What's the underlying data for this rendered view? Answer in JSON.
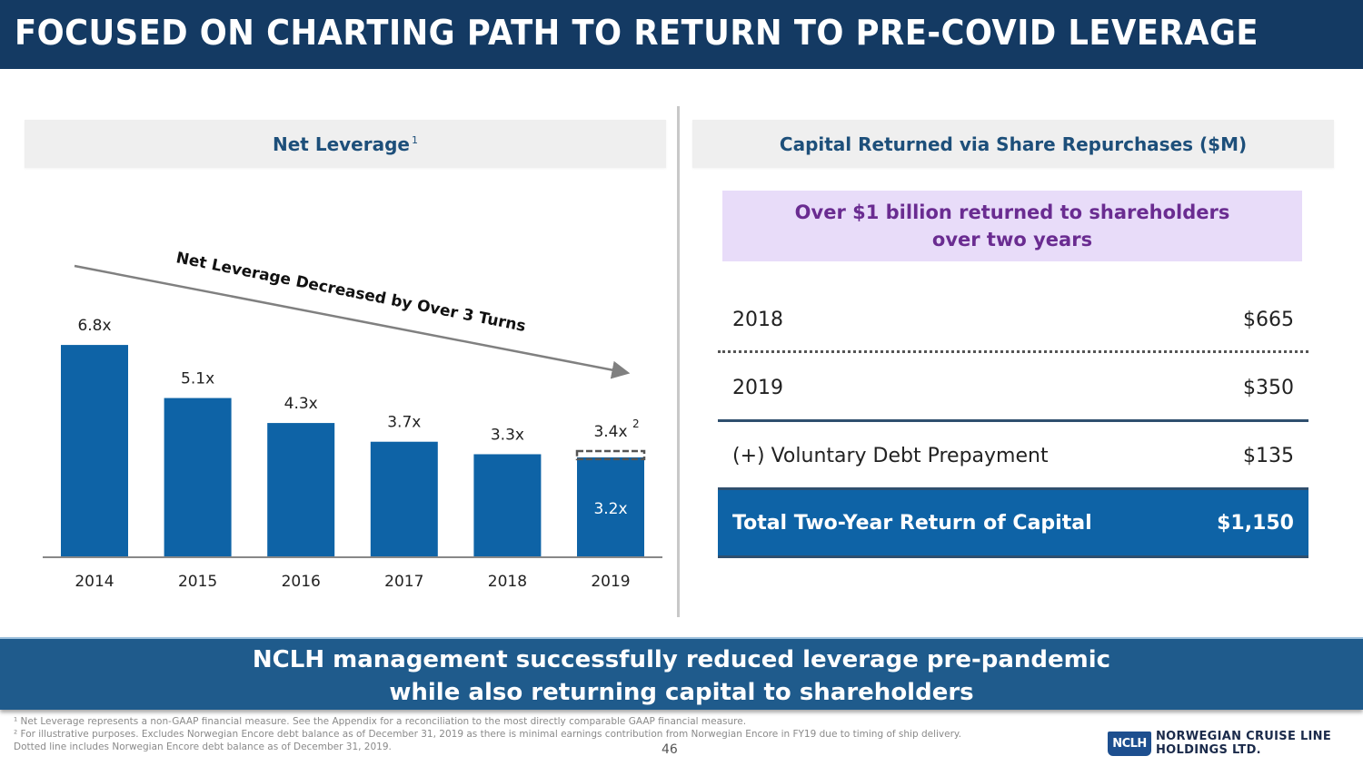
{
  "page": {
    "title": "FOCUSED ON CHARTING PATH TO RETURN TO PRE-COVID LEVERAGE",
    "page_number": "46"
  },
  "left_panel": {
    "header": "Net Leverage",
    "header_footnote": "1"
  },
  "right_panel": {
    "header": "Capital Returned via Share Repurchases ($M)",
    "callout_line1": "Over $1 billion returned to shareholders",
    "callout_line2": "over two years",
    "rows": [
      {
        "label": "2018",
        "value": "$665"
      },
      {
        "label": "2019",
        "value": "$350"
      },
      {
        "label": "(+) Voluntary Debt Prepayment",
        "value": "$135"
      }
    ],
    "total": {
      "label": "Total Two-Year Return of Capital",
      "value": "$1,150"
    }
  },
  "banner": {
    "line1": "NCLH management successfully reduced leverage pre-pandemic",
    "line2": "while also returning capital to shareholders"
  },
  "footnotes": [
    "¹ Net Leverage represents a non-GAAP financial measure. See the Appendix for a reconciliation to the most directly comparable GAAP financial measure.",
    "² For illustrative purposes. Excludes Norwegian Encore debt balance as of December 31, 2019 as there is minimal earnings contribution from Norwegian Encore in FY19 due to timing of ship delivery.",
    "Dotted line includes Norwegian Encore debt balance as of December 31, 2019."
  ],
  "logo": {
    "badge": "NCLH",
    "line1": "NORWEGIAN CRUISE LINE",
    "line2": "HOLDINGS LTD."
  },
  "colors": {
    "title_bg": "#143a63",
    "bar": "#0e63a6",
    "header_text": "#1d4f7a",
    "callout_bg": "#e8dcf9",
    "callout_text": "#6a2c91",
    "banner_bg": "#1f5b8c",
    "arrow": "#808080"
  },
  "chart_data": {
    "type": "bar",
    "title": "Net Leverage",
    "xlabel": "",
    "ylabel": "",
    "categories": [
      "2014",
      "2015",
      "2016",
      "2017",
      "2018",
      "2019"
    ],
    "values": [
      6.8,
      5.1,
      4.3,
      3.7,
      3.3,
      3.2
    ],
    "data_labels": [
      "6.8x",
      "5.1x",
      "4.3x",
      "3.7x",
      "3.3x",
      "3.2x"
    ],
    "overlay": {
      "category": "2019",
      "value": 3.4,
      "label": "3.4x",
      "footnote": "2",
      "style": "dotted",
      "description": "Dotted line includes Norwegian Encore debt balance"
    },
    "inner_label_category": "2019",
    "annotation": "Net Leverage Decreased by Over 3 Turns",
    "ylim": [
      0,
      6.8
    ],
    "grid": false,
    "legend": "none"
  }
}
